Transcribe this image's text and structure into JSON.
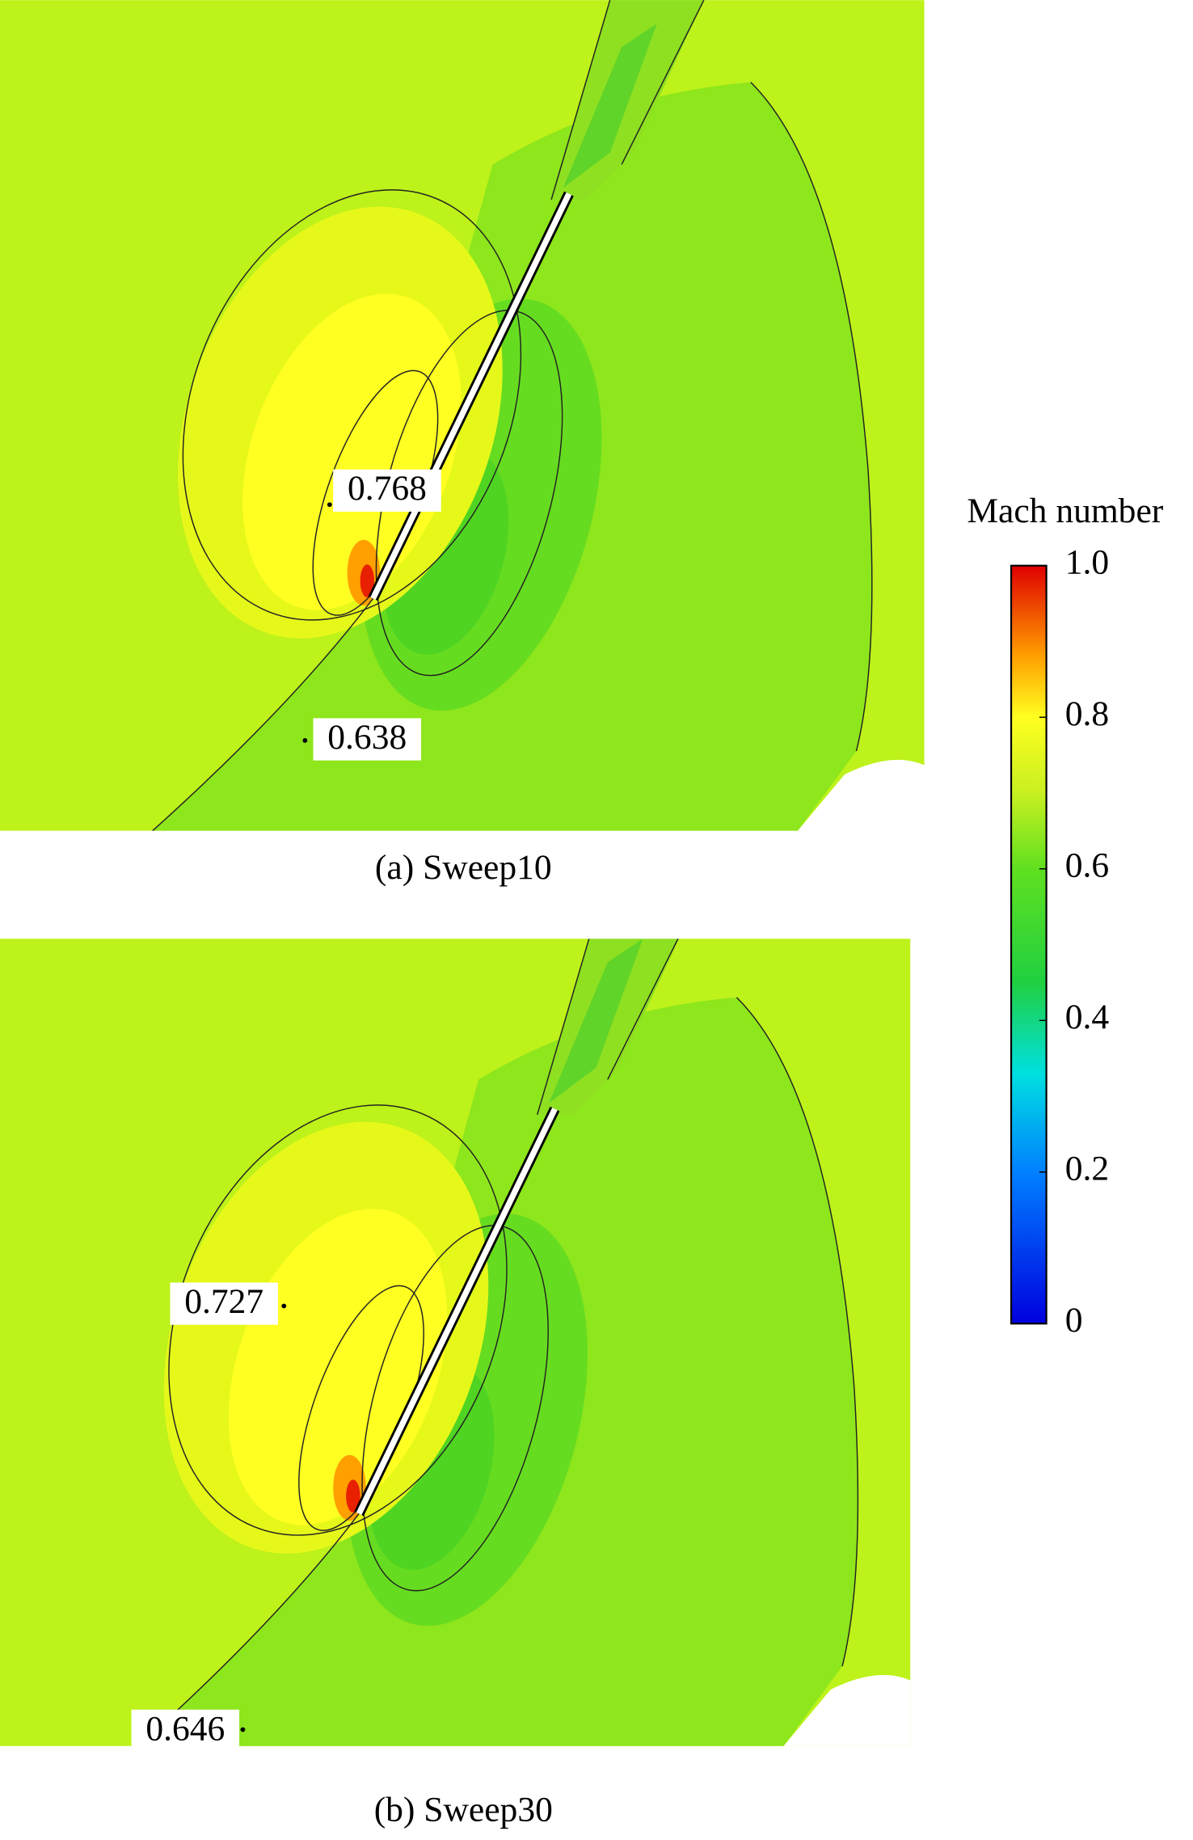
{
  "panels": [
    {
      "caption": "(a) Sweep10",
      "probes": [
        0.768,
        0.638
      ]
    },
    {
      "caption": "(b) Sweep30",
      "probes": [
        0.727,
        0.646
      ]
    }
  ],
  "colorbar": {
    "title": "Mach number",
    "lim": [
      0,
      1
    ],
    "ticks": [
      {
        "value": 1,
        "label": "1.0"
      },
      0.8,
      0.6,
      0.4,
      0.2,
      0
    ]
  }
}
